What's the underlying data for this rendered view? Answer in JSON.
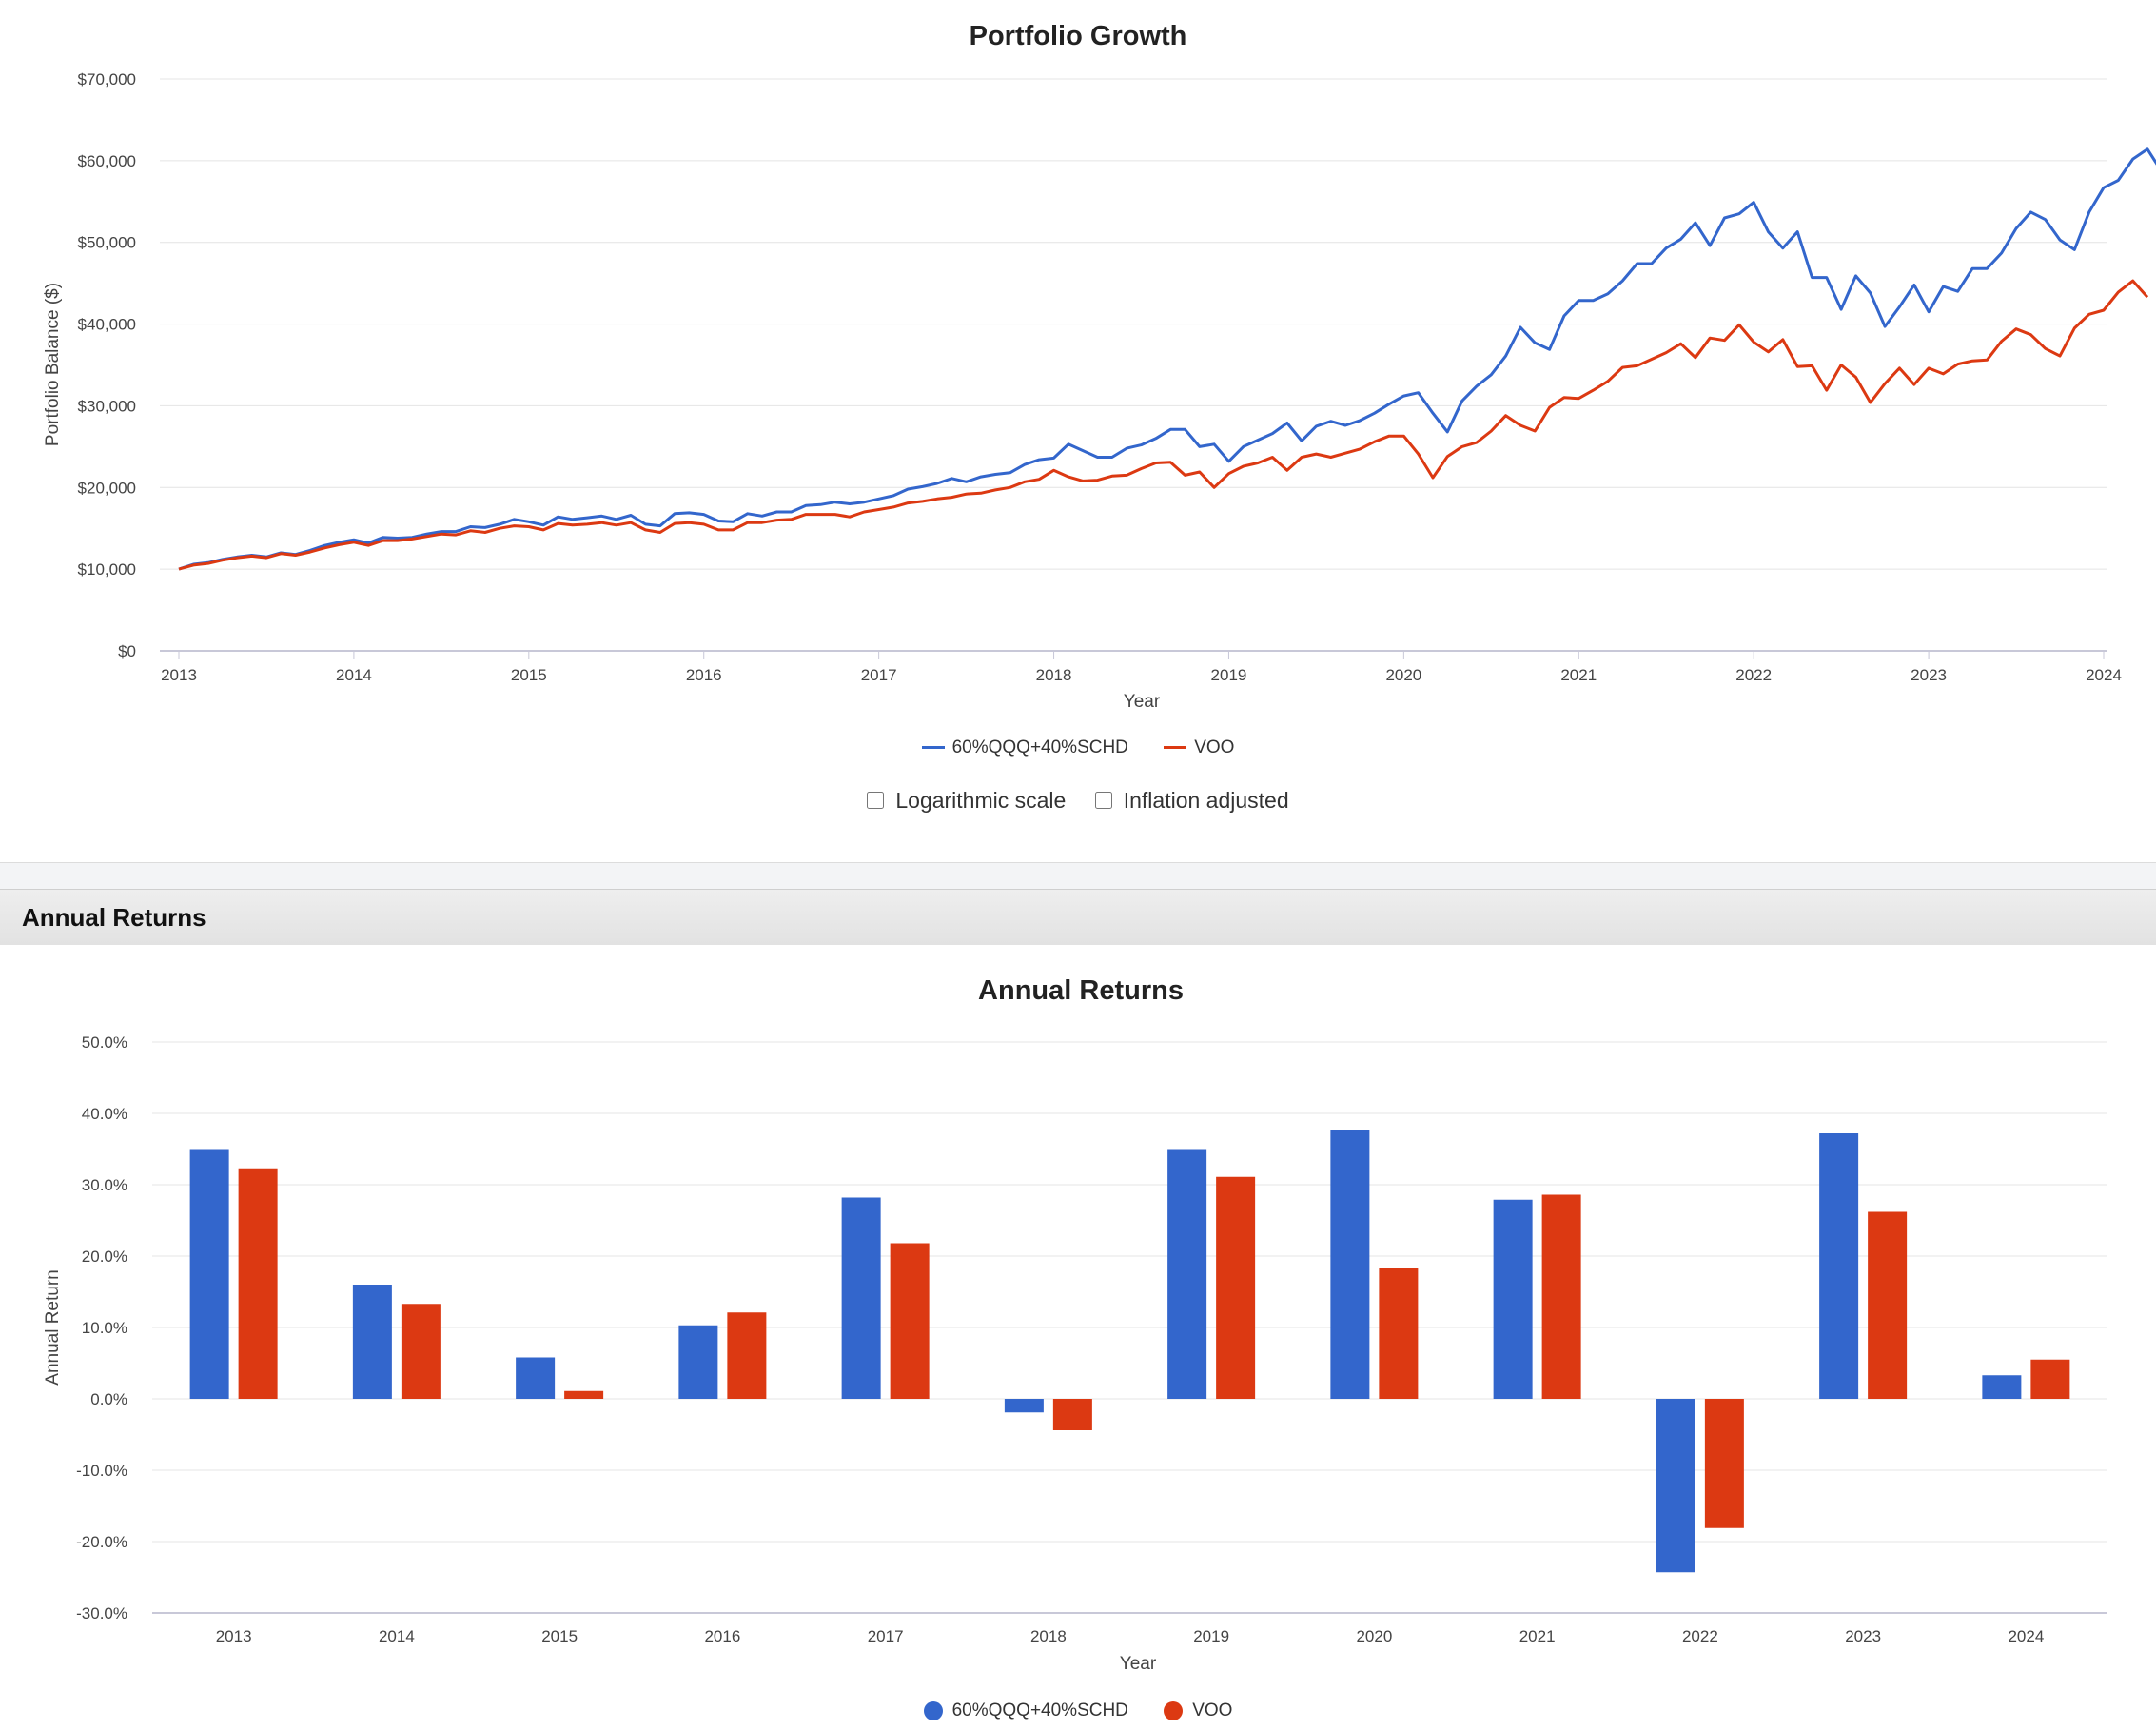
{
  "growth": {
    "options": {
      "log_label": "Logarithmic scale",
      "inflation_label": "Inflation adjusted",
      "log_checked": false,
      "inflation_checked": false
    }
  },
  "section_header": {
    "title": "Annual Returns"
  },
  "chart_data": [
    {
      "type": "line",
      "title": "Portfolio Growth",
      "xlabel": "Year",
      "ylabel": "Portfolio Balance ($)",
      "x_ticks": [
        "2013",
        "2014",
        "2015",
        "2016",
        "2017",
        "2018",
        "2019",
        "2020",
        "2021",
        "2022",
        "2023",
        "2024"
      ],
      "y_ticks": [
        "$0",
        "$10,000",
        "$20,000",
        "$30,000",
        "$40,000",
        "$50,000",
        "$60,000",
        "$70,000"
      ],
      "ylim": [
        0,
        70000
      ],
      "xlim": [
        "2013-01",
        "2024-05"
      ],
      "grid": true,
      "legend_position": "bottom",
      "series": [
        {
          "name": "60%QQQ+40%SCHD",
          "color": "#3366cc",
          "values": [
            10000,
            10600,
            10800,
            11200,
            11500,
            11700,
            11500,
            12000,
            11800,
            12300,
            12900,
            13300,
            13600,
            13200,
            13900,
            13800,
            13900,
            14300,
            14600,
            14600,
            15200,
            15100,
            15500,
            16100,
            15800,
            15400,
            16400,
            16100,
            16300,
            16500,
            16100,
            16600,
            15500,
            15300,
            16800,
            16900,
            16700,
            15900,
            15800,
            16800,
            16500,
            17000,
            17000,
            17800,
            17900,
            18200,
            18000,
            18200,
            18600,
            19000,
            19800,
            20100,
            20500,
            21100,
            20700,
            21300,
            21600,
            21800,
            22800,
            23400,
            23600,
            25300,
            24500,
            23700,
            23700,
            24800,
            25200,
            26000,
            27100,
            27100,
            25000,
            25300,
            23200,
            25000,
            25800,
            26600,
            27900,
            25700,
            27500,
            28100,
            27600,
            28200,
            29100,
            30200,
            31200,
            31600,
            29100,
            26800,
            30600,
            32400,
            33800,
            36100,
            39600,
            37700,
            36900,
            41000,
            42900,
            42900,
            43700,
            45300,
            47400,
            47400,
            49300,
            50400,
            52400,
            49600,
            53000,
            53500,
            54900,
            51300,
            49300,
            51300,
            45700,
            45700,
            41800,
            45900,
            43800,
            39700,
            42100,
            44800,
            41500,
            44600,
            44000,
            46800,
            46800,
            48700,
            51700,
            53700,
            52800,
            50300,
            49100,
            53700,
            56700,
            57600,
            60200,
            61400,
            58600
          ]
        },
        {
          "name": "VOO",
          "color": "#dc3912",
          "values": [
            10000,
            10500,
            10700,
            11100,
            11400,
            11600,
            11400,
            11900,
            11700,
            12100,
            12600,
            13000,
            13300,
            12900,
            13500,
            13500,
            13700,
            14000,
            14300,
            14200,
            14700,
            14500,
            15000,
            15300,
            15200,
            14800,
            15600,
            15400,
            15500,
            15700,
            15400,
            15700,
            14800,
            14500,
            15600,
            15700,
            15500,
            14800,
            14800,
            15700,
            15700,
            16000,
            16100,
            16700,
            16700,
            16700,
            16400,
            17000,
            17300,
            17600,
            18100,
            18300,
            18600,
            18800,
            19200,
            19300,
            19700,
            20000,
            20700,
            21000,
            22100,
            21300,
            20800,
            20900,
            21400,
            21500,
            22300,
            23000,
            23100,
            21500,
            21900,
            20000,
            21700,
            22600,
            23000,
            23700,
            22100,
            23700,
            24100,
            23700,
            24200,
            24700,
            25600,
            26300,
            26300,
            24100,
            21200,
            23800,
            25000,
            25500,
            26900,
            28800,
            27600,
            26900,
            29800,
            31000,
            30900,
            31900,
            33000,
            34700,
            34900,
            35700,
            36500,
            37600,
            35900,
            38300,
            38000,
            39900,
            37800,
            36600,
            38100,
            34800,
            34900,
            31900,
            35000,
            33500,
            30400,
            32700,
            34600,
            32600,
            34600,
            33900,
            35100,
            35500,
            35600,
            37900,
            39400,
            38700,
            37000,
            36100,
            39500,
            41200,
            41700,
            43900,
            45300,
            43300
          ]
        }
      ]
    },
    {
      "type": "bar",
      "title": "Annual Returns",
      "xlabel": "Year",
      "ylabel": "Annual Return",
      "categories": [
        "2013",
        "2014",
        "2015",
        "2016",
        "2017",
        "2018",
        "2019",
        "2020",
        "2021",
        "2022",
        "2023",
        "2024"
      ],
      "y_ticks": [
        "-30.0%",
        "-20.0%",
        "-10.0%",
        "0.0%",
        "10.0%",
        "20.0%",
        "30.0%",
        "40.0%",
        "50.0%"
      ],
      "ylim": [
        -30,
        50
      ],
      "grid": true,
      "legend_position": "bottom",
      "series": [
        {
          "name": "60%QQQ+40%SCHD",
          "color": "#3366cc",
          "values": [
            35.0,
            16.0,
            5.8,
            10.3,
            28.2,
            -1.9,
            35.0,
            37.6,
            27.9,
            -24.3,
            37.2,
            3.3
          ]
        },
        {
          "name": "VOO",
          "color": "#dc3912",
          "values": [
            32.3,
            13.3,
            1.1,
            12.1,
            21.8,
            -4.4,
            31.1,
            18.3,
            28.6,
            -18.1,
            26.2,
            5.5
          ]
        }
      ]
    }
  ]
}
